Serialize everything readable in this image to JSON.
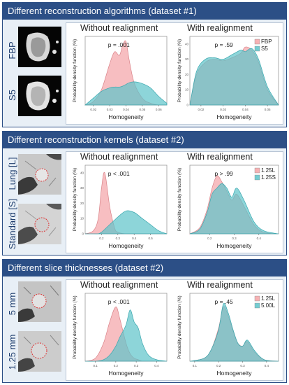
{
  "panels": [
    {
      "title": "Different reconstruction algorithms (dataset #1)",
      "row_labels": [
        "FBP",
        "S5"
      ],
      "columns": [
        "Without realignment",
        "With realignment"
      ]
    },
    {
      "title": "Different reconstruction kernels (dataset #2)",
      "row_labels": [
        "Lung [L]",
        "Standard [S]"
      ],
      "columns": [
        "Without realignment",
        "With realignment"
      ]
    },
    {
      "title": "Different slice thicknesses (dataset #2)",
      "row_labels": [
        "5 mm",
        "1.25 mm"
      ],
      "columns": [
        "Without realignment",
        "With realignment"
      ]
    }
  ],
  "colors": {
    "series_a": "#f4a3a6",
    "series_b": "#5cc3c9",
    "frame": "#2c4f86",
    "label": "#1f3e6e"
  },
  "chart_data": [
    {
      "type": "area",
      "title": "Without realignment",
      "annotation": "p = .001",
      "xlabel": "Homogeneity",
      "ylabel": "Probability density function (%)",
      "xticks": [
        "0.02",
        "0.03",
        "0.04",
        "0.05",
        "0.06"
      ],
      "yticks": [],
      "xlim": [
        0.015,
        0.065
      ],
      "ylim": [
        0,
        80
      ],
      "x": [
        0.015,
        0.02,
        0.025,
        0.03,
        0.033,
        0.036,
        0.038,
        0.04,
        0.042,
        0.045,
        0.05,
        0.055,
        0.06,
        0.065
      ],
      "series": [
        {
          "name": "FBP",
          "values": [
            0,
            4,
            18,
            48,
            62,
            58,
            70,
            74,
            52,
            26,
            8,
            2,
            0,
            0
          ]
        },
        {
          "name": "S5",
          "values": [
            0,
            8,
            16,
            20,
            21,
            21,
            22,
            24,
            26,
            27,
            25,
            20,
            10,
            2
          ]
        }
      ]
    },
    {
      "type": "area",
      "title": "With realignment",
      "annotation": "p = .59",
      "xlabel": "Homogeneity",
      "ylabel": "Probability density function (%)",
      "xticks": [
        "0.02",
        "0.03",
        "0.04",
        "0.05"
      ],
      "yticks": [
        "0",
        "10",
        "20",
        "30",
        "40"
      ],
      "xlim": [
        0.015,
        0.055
      ],
      "ylim": [
        0,
        45
      ],
      "legend": [
        "FBP",
        "S5"
      ],
      "x": [
        0.015,
        0.018,
        0.022,
        0.026,
        0.03,
        0.034,
        0.038,
        0.04,
        0.043,
        0.046,
        0.05,
        0.055
      ],
      "series": [
        {
          "name": "FBP",
          "values": [
            0,
            20,
            28,
            30,
            29,
            31,
            34,
            38,
            36,
            28,
            10,
            0
          ]
        },
        {
          "name": "S5",
          "values": [
            0,
            22,
            30,
            31,
            30,
            33,
            36,
            35,
            37,
            30,
            12,
            0
          ]
        }
      ]
    },
    {
      "type": "area",
      "title": "Without realignment",
      "annotation": "p < .001",
      "xlabel": "Homogeneity",
      "ylabel": "Probability density function (%)",
      "xticks": [
        "0.2",
        "0.3",
        "0.4",
        "0.5"
      ],
      "yticks": [
        "0",
        "10",
        "20",
        "30",
        "40"
      ],
      "xlim": [
        0.1,
        0.6
      ],
      "ylim": [
        0,
        45
      ],
      "x": [
        0.1,
        0.15,
        0.18,
        0.2,
        0.22,
        0.25,
        0.28,
        0.3,
        0.35,
        0.4,
        0.45,
        0.5,
        0.55,
        0.6
      ],
      "series": [
        {
          "name": "1.25L",
          "values": [
            0,
            2,
            10,
            30,
            40,
            18,
            4,
            1,
            0,
            0,
            0,
            0,
            0,
            0
          ]
        },
        {
          "name": "1.25S",
          "values": [
            0,
            0,
            0,
            1,
            3,
            6,
            9,
            11,
            15,
            14,
            10,
            6,
            2,
            0
          ]
        }
      ]
    },
    {
      "type": "area",
      "title": "With realignment",
      "annotation": "p > .99",
      "xlabel": "Homogeneity",
      "ylabel": "Probability density function (%)",
      "xticks": [
        "0.2",
        "0.3",
        "0.4"
      ],
      "yticks": [],
      "xlim": [
        0.12,
        0.48
      ],
      "ylim": [
        0,
        45
      ],
      "legend": [
        "1.25L",
        "1.25S"
      ],
      "x": [
        0.12,
        0.16,
        0.19,
        0.21,
        0.23,
        0.25,
        0.27,
        0.29,
        0.31,
        0.34,
        0.38,
        0.42,
        0.48
      ],
      "series": [
        {
          "name": "1.25L",
          "values": [
            0,
            4,
            16,
            30,
            38,
            34,
            28,
            22,
            26,
            18,
            6,
            1,
            0
          ]
        },
        {
          "name": "1.25S",
          "values": [
            0,
            3,
            14,
            26,
            30,
            33,
            30,
            24,
            30,
            22,
            8,
            2,
            0
          ]
        }
      ]
    },
    {
      "type": "area",
      "title": "Without realignment",
      "annotation": "p < .001",
      "xlabel": "Homogeneity",
      "ylabel": "Probability density function (%)",
      "xticks": [
        "0.1",
        "0.2",
        "0.3",
        "0.4"
      ],
      "yticks": [],
      "xlim": [
        0.05,
        0.45
      ],
      "ylim": [
        0,
        45
      ],
      "x": [
        0.05,
        0.1,
        0.14,
        0.17,
        0.2,
        0.22,
        0.25,
        0.27,
        0.29,
        0.31,
        0.33,
        0.36,
        0.4,
        0.45
      ],
      "series": [
        {
          "name": "1.25L",
          "values": [
            0,
            2,
            12,
            26,
            36,
            28,
            12,
            5,
            2,
            1,
            0,
            0,
            0,
            0
          ]
        },
        {
          "name": "5.00L",
          "values": [
            0,
            0,
            1,
            4,
            10,
            16,
            24,
            34,
            26,
            22,
            12,
            4,
            1,
            0
          ]
        }
      ]
    },
    {
      "type": "area",
      "title": "With realignment",
      "annotation": "p = .45",
      "xlabel": "Homogeneity",
      "ylabel": "Probability density function (%)",
      "xticks": [
        "0.1",
        "0.2",
        "0.3",
        "0.4"
      ],
      "yticks": [],
      "xlim": [
        0.08,
        0.45
      ],
      "ylim": [
        0,
        45
      ],
      "legend": [
        "1.25L",
        "5.00L"
      ],
      "x": [
        0.08,
        0.14,
        0.17,
        0.2,
        0.22,
        0.24,
        0.26,
        0.28,
        0.3,
        0.32,
        0.35,
        0.39,
        0.45
      ],
      "series": [
        {
          "name": "1.25L",
          "values": [
            0,
            2,
            8,
            22,
            36,
            30,
            20,
            12,
            10,
            13,
            6,
            1,
            0
          ]
        },
        {
          "name": "5.00L",
          "values": [
            0,
            2,
            8,
            21,
            38,
            32,
            21,
            12,
            10,
            14,
            7,
            1,
            0
          ]
        }
      ]
    }
  ]
}
